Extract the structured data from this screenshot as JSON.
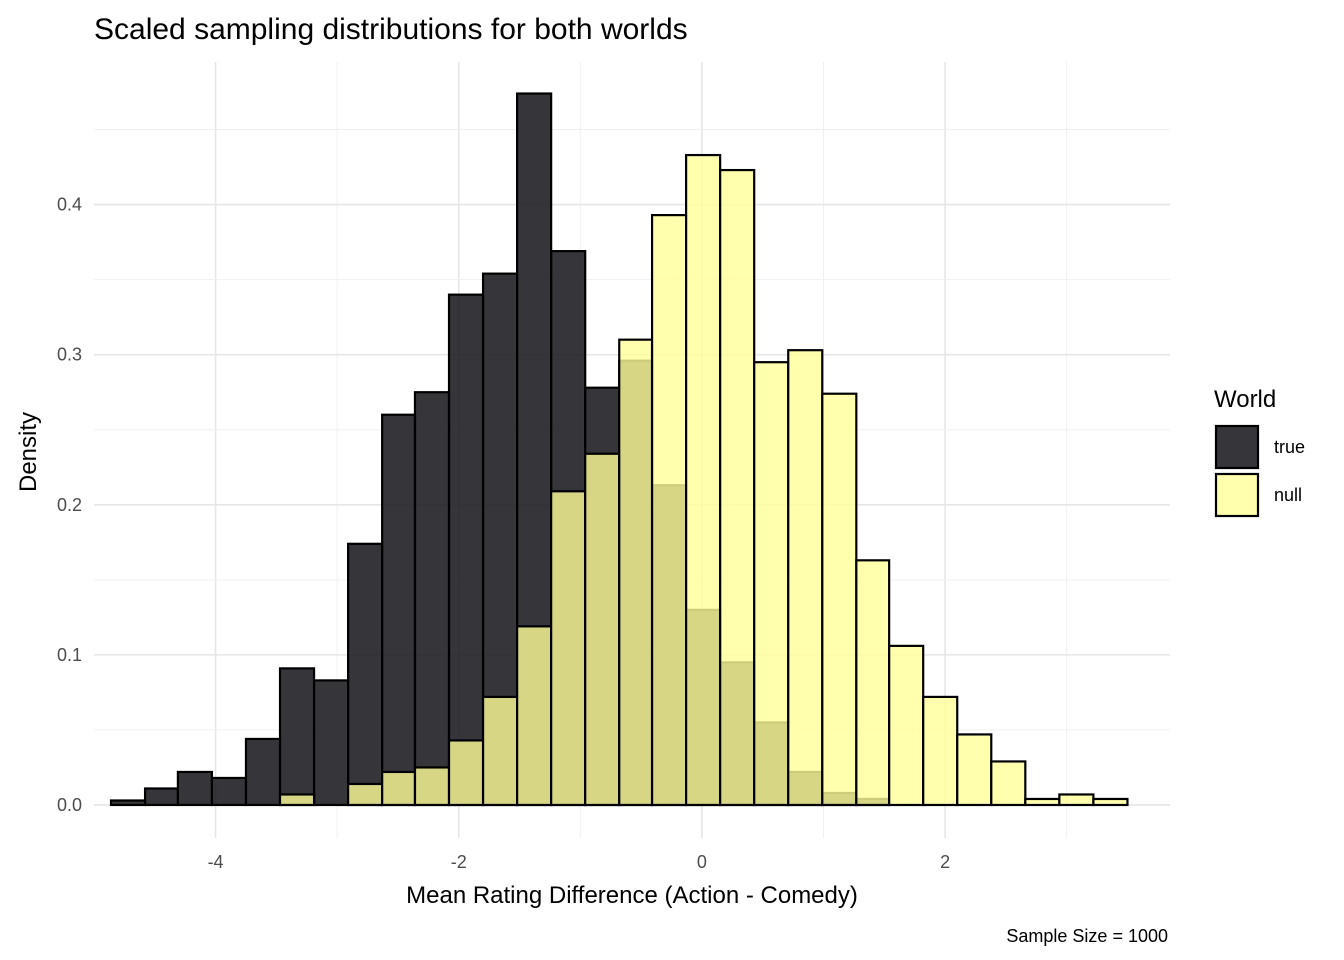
{
  "chart_data": {
    "type": "bar",
    "title": "Scaled sampling distributions for both worlds",
    "xlabel": "Mean Rating Difference (Action - Comedy)",
    "ylabel": "Density",
    "caption": "Sample Size = 1000",
    "xlim": [
      -5.0,
      3.85
    ],
    "ylim": [
      -0.022,
      0.495
    ],
    "grid": true,
    "x_ticks": [
      -4,
      -2,
      0,
      2
    ],
    "x_tick_labels": [
      "-4",
      "-2",
      "0",
      "2"
    ],
    "y_ticks": [
      0.0,
      0.1,
      0.2,
      0.3,
      0.4
    ],
    "y_tick_labels": [
      "0.0",
      "0.1",
      "0.2",
      "0.3",
      "0.4"
    ],
    "bin_edges": [
      -4.86,
      -4.58,
      -4.31,
      -4.03,
      -3.75,
      -3.47,
      -3.19,
      -2.91,
      -2.63,
      -2.36,
      -2.08,
      -1.8,
      -1.52,
      -1.24,
      -0.96,
      -0.68,
      -0.41,
      -0.13,
      0.15,
      0.43,
      0.71,
      0.99,
      1.27,
      1.54,
      1.82,
      2.1,
      2.38,
      2.66,
      2.94,
      3.22,
      3.5
    ],
    "legend": {
      "title": "World",
      "placement": "right"
    },
    "series": [
      {
        "name": "true",
        "color": "#1a1a1f",
        "values": [
          0.003,
          0.011,
          0.022,
          0.018,
          0.044,
          0.091,
          0.083,
          0.174,
          0.26,
          0.275,
          0.34,
          0.354,
          0.474,
          0.369,
          0.278,
          0.296,
          0.213,
          0.13,
          0.095,
          0.055,
          0.022,
          0.008,
          0.004,
          0,
          0,
          0,
          0,
          0,
          0,
          0
        ]
      },
      {
        "name": "null",
        "color": "#ffff99",
        "values": [
          0,
          0,
          0,
          0,
          0,
          0.007,
          0,
          0.014,
          0.022,
          0.025,
          0.043,
          0.072,
          0.119,
          0.209,
          0.234,
          0.31,
          0.393,
          0.433,
          0.423,
          0.295,
          0.303,
          0.274,
          0.163,
          0.106,
          0.072,
          0.047,
          0.029,
          0.004,
          0.007,
          0.004
        ]
      }
    ]
  }
}
